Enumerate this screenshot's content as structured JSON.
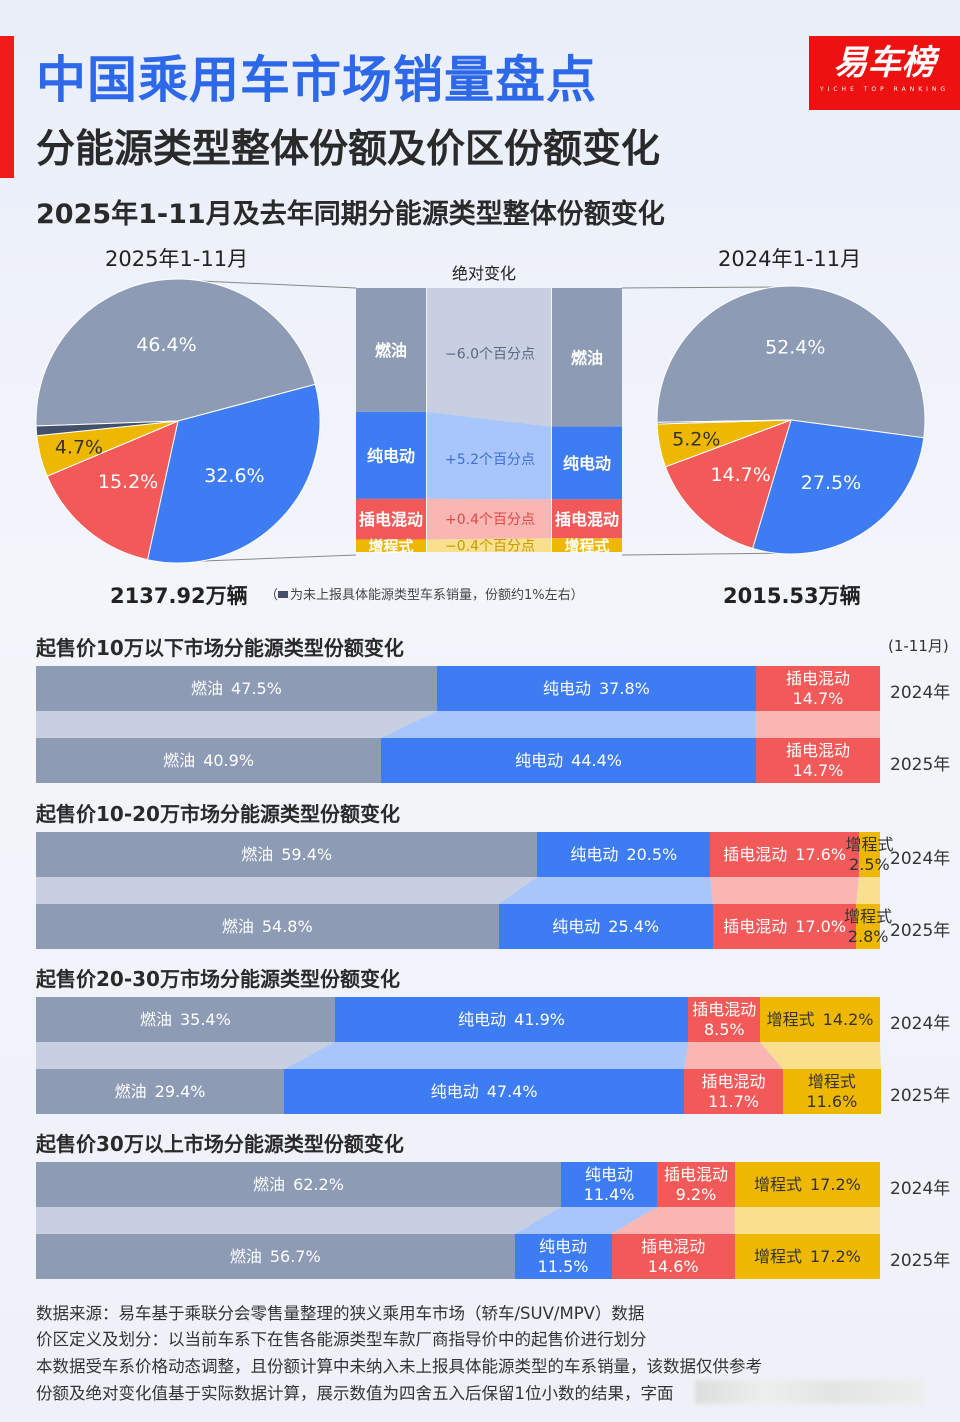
{
  "header": {
    "title": "中国乘用车市场销量盘点",
    "subtitle": "分能源类型整体份额及价区份额变化",
    "logo_text": "易车榜",
    "logo_sub": "YICHE TOP RANKING"
  },
  "colors": {
    "fuel": "#8e9bb5",
    "bev": "#3d7cf2",
    "phev": "#f25a5a",
    "erev": "#efb800",
    "unknown": "#44506a",
    "fuel_light": "#c7cfe0",
    "bev_light": "#a8c6fb",
    "phev_light": "#f9b6b2",
    "erev_light": "#f8e08e",
    "title_blue": "#2d68e8",
    "brand_red": "#ee1111"
  },
  "overall": {
    "section_title": "2025年1-11月及去年同期分能源类型整体份额变化",
    "change_title": "绝对变化",
    "note": "为未上报具体能源类型车系销量，份额约1%左右",
    "note_open": "（",
    "note_close": "）"
  },
  "chart_data": [
    {
      "type": "pie",
      "title": "2025年1-11月",
      "total": "2137.92万辆",
      "labels": [
        "燃油",
        "纯电动",
        "插电混动",
        "增程式",
        "未上报"
      ],
      "values": [
        46.4,
        32.6,
        15.2,
        4.7,
        1.1
      ],
      "value_labels": [
        "46.4%",
        "32.6%",
        "15.2%",
        "4.7%",
        ""
      ]
    },
    {
      "type": "bar",
      "title": "绝对变化",
      "categories": [
        "燃油",
        "纯电动",
        "插电混动",
        "增程式"
      ],
      "values": [
        -6.0,
        5.2,
        0.4,
        -0.4
      ],
      "value_labels": [
        "−6.0个百分点",
        "+5.2个百分点",
        "+0.4个百分点",
        "−0.4个百分点"
      ]
    },
    {
      "type": "pie",
      "title": "2024年1-11月",
      "total": "2015.53万辆",
      "labels": [
        "燃油",
        "纯电动",
        "插电混动",
        "增程式",
        "未上报"
      ],
      "values": [
        52.4,
        27.5,
        14.7,
        5.2,
        0.2
      ],
      "value_labels": [
        "52.4%",
        "27.5%",
        "14.7%",
        "5.2%",
        ""
      ]
    },
    {
      "type": "bar",
      "stacked": true,
      "orientation": "horizontal",
      "title": "起售价10万以下市场分能源类型份额变化",
      "period": "(1-11月)",
      "categories": [
        "2024年",
        "2025年"
      ],
      "series": [
        {
          "name": "燃油",
          "values": [
            47.5,
            40.9
          ]
        },
        {
          "name": "纯电动",
          "values": [
            37.8,
            44.4
          ]
        },
        {
          "name": "插电混动",
          "values": [
            14.7,
            14.7
          ]
        }
      ]
    },
    {
      "type": "bar",
      "stacked": true,
      "orientation": "horizontal",
      "title": "起售价10-20万市场分能源类型份额变化",
      "categories": [
        "2024年",
        "2025年"
      ],
      "series": [
        {
          "name": "燃油",
          "values": [
            59.4,
            54.8
          ]
        },
        {
          "name": "纯电动",
          "values": [
            20.5,
            25.4
          ]
        },
        {
          "name": "插电混动",
          "values": [
            17.6,
            17.0
          ]
        },
        {
          "name": "增程式",
          "values": [
            2.5,
            2.8
          ]
        }
      ]
    },
    {
      "type": "bar",
      "stacked": true,
      "orientation": "horizontal",
      "title": "起售价20-30万市场分能源类型份额变化",
      "categories": [
        "2024年",
        "2025年"
      ],
      "series": [
        {
          "name": "燃油",
          "values": [
            35.4,
            29.4
          ]
        },
        {
          "name": "纯电动",
          "values": [
            41.9,
            47.4
          ]
        },
        {
          "name": "插电混动",
          "values": [
            8.5,
            11.7
          ]
        },
        {
          "name": "增程式",
          "values": [
            14.2,
            11.6
          ]
        }
      ]
    },
    {
      "type": "bar",
      "stacked": true,
      "orientation": "horizontal",
      "title": "起售价30万以上市场分能源类型份额变化",
      "categories": [
        "2024年",
        "2025年"
      ],
      "series": [
        {
          "name": "燃油",
          "values": [
            62.2,
            56.7
          ]
        },
        {
          "name": "纯电动",
          "values": [
            11.4,
            11.5
          ]
        },
        {
          "name": "插电混动",
          "values": [
            9.2,
            14.6
          ]
        },
        {
          "name": "增程式",
          "values": [
            17.2,
            17.2
          ]
        }
      ]
    }
  ],
  "footer": [
    "数据来源：易车基于乘联分会零售量整理的狭义乘用车市场（轿车/SUV/MPV）数据",
    "价区定义及划分：以当前车系下在售各能源类型车款厂商指导价中的起售价进行划分",
    "本数据受车系价格动态调整，且份额计算中未纳入未上报具体能源类型的车系销量，该数据仅供参考",
    "份额及绝对变化值基于实际数据计算，展示数值为四舍五入后保留1位小数的结果，字面"
  ]
}
